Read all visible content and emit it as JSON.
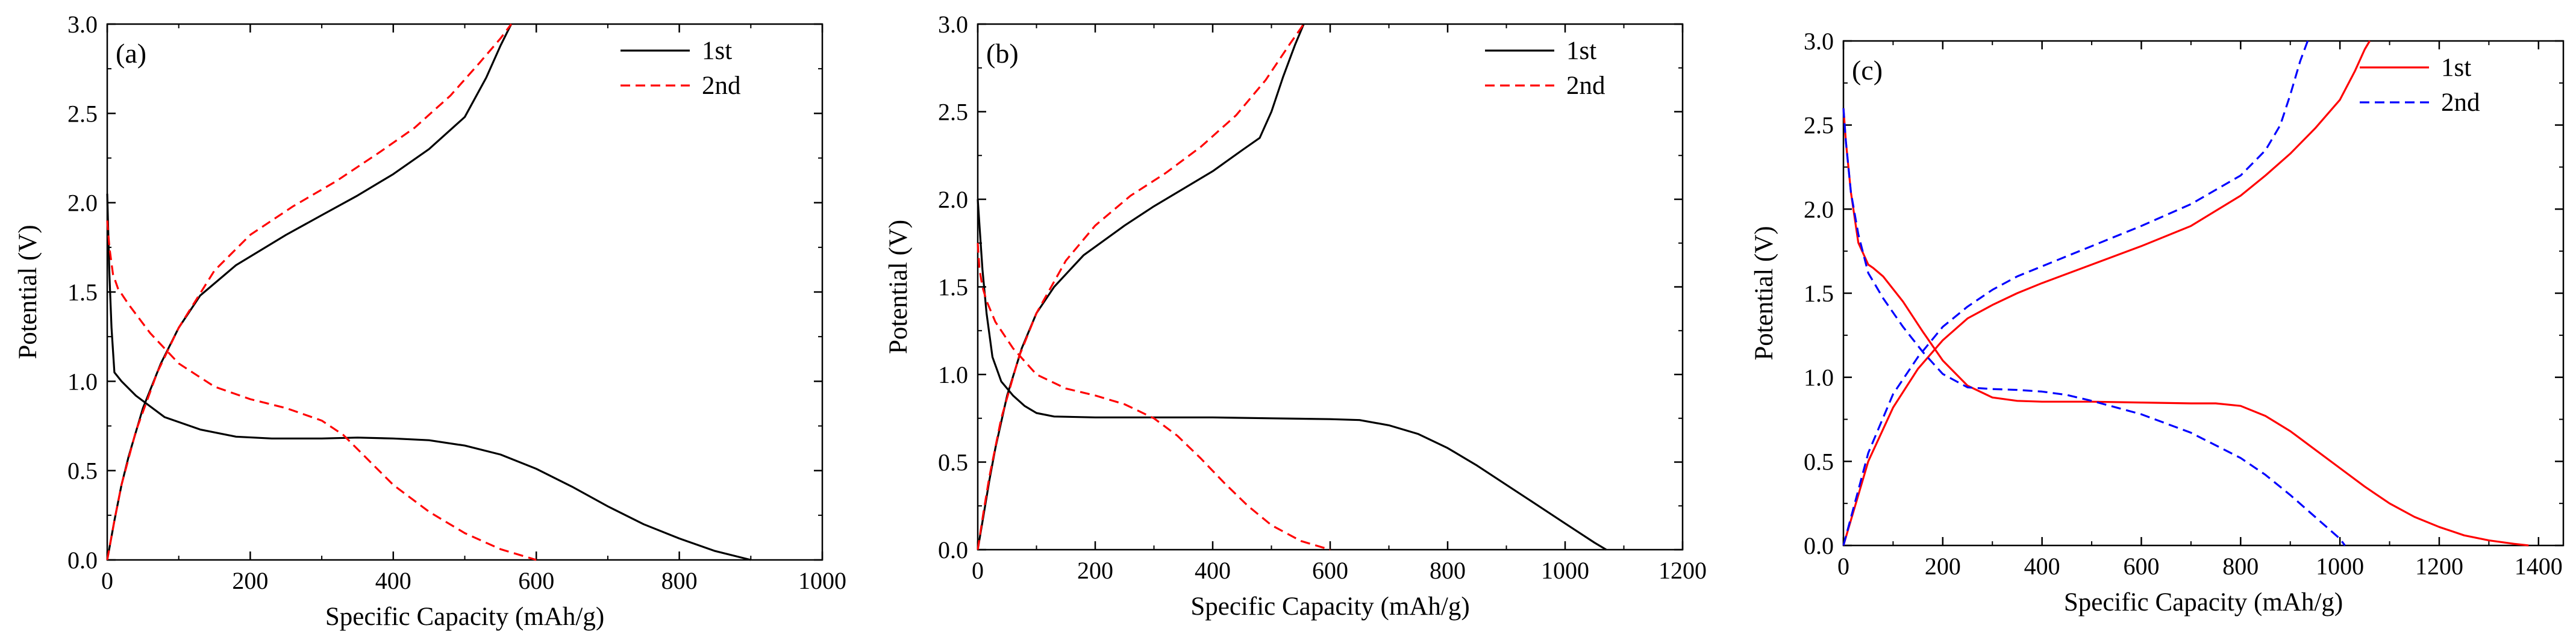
{
  "chart_data": [
    {
      "type": "line",
      "panel_label": "(a)",
      "xlabel": "Specific Capacity (mAh/g)",
      "ylabel": "Potential (V)",
      "xlim": [
        0,
        1000
      ],
      "ylim": [
        0,
        3.0
      ],
      "xticks": [
        0,
        200,
        400,
        600,
        800,
        1000
      ],
      "xtick_labels": [
        "0",
        "200",
        "400",
        "600",
        "800",
        "1000"
      ],
      "yticks": [
        0,
        0.5,
        1.0,
        1.5,
        2.0,
        2.5,
        3.0
      ],
      "ytick_labels": [
        "0.0",
        "0.5",
        "1.0",
        "1.5",
        "2.0",
        "2.5",
        "3.0"
      ],
      "legend_position": "top-right",
      "series": [
        {
          "name": "1st",
          "color": "#000000",
          "dash": "solid",
          "segments": [
            {
              "x": [
                0,
                3,
                6,
                10,
                20,
                40,
                80,
                130,
                180,
                230,
                300,
                350,
                400,
                450,
                500,
                550,
                600,
                650,
                700,
                750,
                800,
                850,
                900
              ],
              "y": [
                2.05,
                1.6,
                1.3,
                1.05,
                1.0,
                0.92,
                0.8,
                0.73,
                0.69,
                0.68,
                0.68,
                0.685,
                0.68,
                0.67,
                0.64,
                0.59,
                0.51,
                0.41,
                0.3,
                0.2,
                0.12,
                0.05,
                0.0
              ]
            },
            {
              "x": [
                0,
                10,
                20,
                30,
                50,
                75,
                100,
                130,
                180,
                250,
                300,
                350,
                400,
                450,
                500,
                530,
                550,
                560,
                565
              ],
              "y": [
                0.0,
                0.22,
                0.42,
                0.58,
                0.85,
                1.1,
                1.3,
                1.48,
                1.65,
                1.82,
                1.93,
                2.04,
                2.16,
                2.3,
                2.48,
                2.7,
                2.88,
                2.96,
                3.0
              ]
            }
          ]
        },
        {
          "name": "2nd",
          "color": "#ff0000",
          "dash": "dashed",
          "segments": [
            {
              "x": [
                0,
                3,
                8,
                15,
                30,
                60,
                100,
                150,
                200,
                250,
                300,
                330,
                360,
                400,
                450,
                500,
                550,
                600
              ],
              "y": [
                1.9,
                1.75,
                1.6,
                1.52,
                1.43,
                1.27,
                1.1,
                0.97,
                0.9,
                0.85,
                0.78,
                0.7,
                0.58,
                0.42,
                0.27,
                0.15,
                0.06,
                0.0
              ]
            },
            {
              "x": [
                0,
                10,
                20,
                40,
                70,
                100,
                150,
                200,
                260,
                320,
                380,
                430,
                480,
                520,
                550,
                565
              ],
              "y": [
                0.0,
                0.22,
                0.42,
                0.72,
                1.05,
                1.3,
                1.62,
                1.82,
                1.98,
                2.12,
                2.28,
                2.42,
                2.6,
                2.78,
                2.92,
                3.0
              ]
            }
          ]
        }
      ]
    },
    {
      "type": "line",
      "panel_label": "(b)",
      "xlabel": "Specific Capacity (mAh/g)",
      "ylabel": "Potential (V)",
      "xlim": [
        0,
        1200
      ],
      "ylim": [
        0,
        3.0
      ],
      "xticks": [
        0,
        200,
        400,
        600,
        800,
        1000,
        1200
      ],
      "xtick_labels": [
        "0",
        "200",
        "400",
        "600",
        "800",
        "1000",
        "1200"
      ],
      "yticks": [
        0,
        0.5,
        1.0,
        1.5,
        2.0,
        2.5,
        3.0
      ],
      "ytick_labels": [
        "0.0",
        "0.5",
        "1.0",
        "1.5",
        "2.0",
        "2.5",
        "3.0"
      ],
      "legend_position": "top-right",
      "series": [
        {
          "name": "1st",
          "color": "#000000",
          "dash": "solid",
          "segments": [
            {
              "x": [
                0,
                3,
                8,
                15,
                25,
                40,
                60,
                80,
                100,
                130,
                200,
                300,
                400,
                500,
                600,
                650,
                700,
                750,
                800,
                850,
                900,
                950,
                1000,
                1050,
                1070
              ],
              "y": [
                2.0,
                1.85,
                1.6,
                1.35,
                1.1,
                0.96,
                0.88,
                0.82,
                0.78,
                0.76,
                0.755,
                0.755,
                0.755,
                0.75,
                0.745,
                0.74,
                0.71,
                0.66,
                0.58,
                0.48,
                0.37,
                0.26,
                0.15,
                0.04,
                0.0
              ]
            },
            {
              "x": [
                0,
                10,
                20,
                30,
                50,
                75,
                100,
                130,
                180,
                250,
                300,
                350,
                400,
                450,
                480,
                500,
                520,
                540,
                555
              ],
              "y": [
                0.0,
                0.2,
                0.4,
                0.58,
                0.88,
                1.15,
                1.35,
                1.5,
                1.68,
                1.85,
                1.96,
                2.06,
                2.16,
                2.28,
                2.35,
                2.5,
                2.7,
                2.88,
                3.0
              ]
            }
          ]
        },
        {
          "name": "2nd",
          "color": "#ff0000",
          "dash": "dashed",
          "segments": [
            {
              "x": [
                0,
                3,
                8,
                15,
                30,
                60,
                100,
                150,
                200,
                250,
                300,
                340,
                380,
                420,
                460,
                500,
                550,
                600
              ],
              "y": [
                1.75,
                1.6,
                1.5,
                1.42,
                1.3,
                1.15,
                1.0,
                0.92,
                0.88,
                0.83,
                0.75,
                0.65,
                0.52,
                0.38,
                0.25,
                0.14,
                0.05,
                0.0
              ]
            },
            {
              "x": [
                0,
                10,
                20,
                40,
                70,
                100,
                150,
                200,
                260,
                320,
                380,
                440,
                490,
                530,
                555
              ],
              "y": [
                0.0,
                0.22,
                0.42,
                0.75,
                1.1,
                1.35,
                1.65,
                1.85,
                2.02,
                2.15,
                2.3,
                2.48,
                2.68,
                2.88,
                3.0
              ]
            }
          ]
        }
      ]
    },
    {
      "type": "line",
      "panel_label": "(c)",
      "xlabel": "Specific Capacity (mAh/g)",
      "ylabel": "Potential (V)",
      "xlim": [
        0,
        1450
      ],
      "ylim": [
        0,
        3.0
      ],
      "xticks": [
        0,
        200,
        400,
        600,
        800,
        1000,
        1200,
        1400
      ],
      "xtick_labels": [
        "0",
        "200",
        "400",
        "600",
        "800",
        "1000",
        "1200",
        "1400"
      ],
      "yticks": [
        0,
        0.5,
        1.0,
        1.5,
        2.0,
        2.5,
        3.0
      ],
      "ytick_labels": [
        "0.0",
        "0.5",
        "1.0",
        "1.5",
        "2.0",
        "2.5",
        "3.0"
      ],
      "legend_position": "top-right",
      "series": [
        {
          "name": "1st",
          "color": "#ff0000",
          "dash": "solid",
          "segments": [
            {
              "x": [
                0,
                5,
                15,
                30,
                50,
                60,
                80,
                120,
                160,
                200,
                250,
                300,
                350,
                400,
                500,
                600,
                700,
                750,
                800,
                850,
                900,
                950,
                1000,
                1050,
                1100,
                1150,
                1200,
                1250,
                1300,
                1350,
                1380
              ],
              "y": [
                2.6,
                2.4,
                2.1,
                1.8,
                1.67,
                1.65,
                1.6,
                1.45,
                1.27,
                1.1,
                0.95,
                0.88,
                0.86,
                0.855,
                0.855,
                0.85,
                0.845,
                0.845,
                0.83,
                0.77,
                0.68,
                0.57,
                0.46,
                0.35,
                0.25,
                0.17,
                0.11,
                0.06,
                0.03,
                0.01,
                0.0
              ]
            },
            {
              "x": [
                0,
                20,
                50,
                100,
                150,
                200,
                250,
                300,
                350,
                400,
                500,
                600,
                700,
                800,
                850,
                900,
                950,
                1000,
                1030,
                1050,
                1060
              ],
              "y": [
                0.0,
                0.2,
                0.5,
                0.82,
                1.05,
                1.22,
                1.35,
                1.43,
                1.5,
                1.56,
                1.67,
                1.78,
                1.9,
                2.08,
                2.2,
                2.33,
                2.48,
                2.65,
                2.82,
                2.95,
                3.0
              ]
            }
          ]
        },
        {
          "name": "2nd",
          "color": "#0000ff",
          "dash": "dashed",
          "segments": [
            {
              "x": [
                0,
                5,
                15,
                30,
                50,
                80,
                120,
                160,
                200,
                250,
                300,
                350,
                400,
                450,
                500,
                550,
                600,
                700,
                800,
                850,
                900,
                950,
                1000,
                1010
              ],
              "y": [
                2.6,
                2.4,
                2.1,
                1.85,
                1.62,
                1.47,
                1.3,
                1.15,
                1.02,
                0.94,
                0.93,
                0.925,
                0.915,
                0.895,
                0.86,
                0.82,
                0.78,
                0.67,
                0.52,
                0.42,
                0.3,
                0.17,
                0.04,
                0.0
              ]
            },
            {
              "x": [
                0,
                20,
                50,
                100,
                150,
                200,
                250,
                300,
                350,
                400,
                500,
                600,
                700,
                800,
                850,
                880,
                900,
                920,
                935
              ],
              "y": [
                0.0,
                0.22,
                0.55,
                0.9,
                1.12,
                1.3,
                1.42,
                1.52,
                1.6,
                1.66,
                1.78,
                1.9,
                2.03,
                2.2,
                2.35,
                2.5,
                2.68,
                2.88,
                3.0
              ]
            }
          ]
        }
      ]
    }
  ]
}
